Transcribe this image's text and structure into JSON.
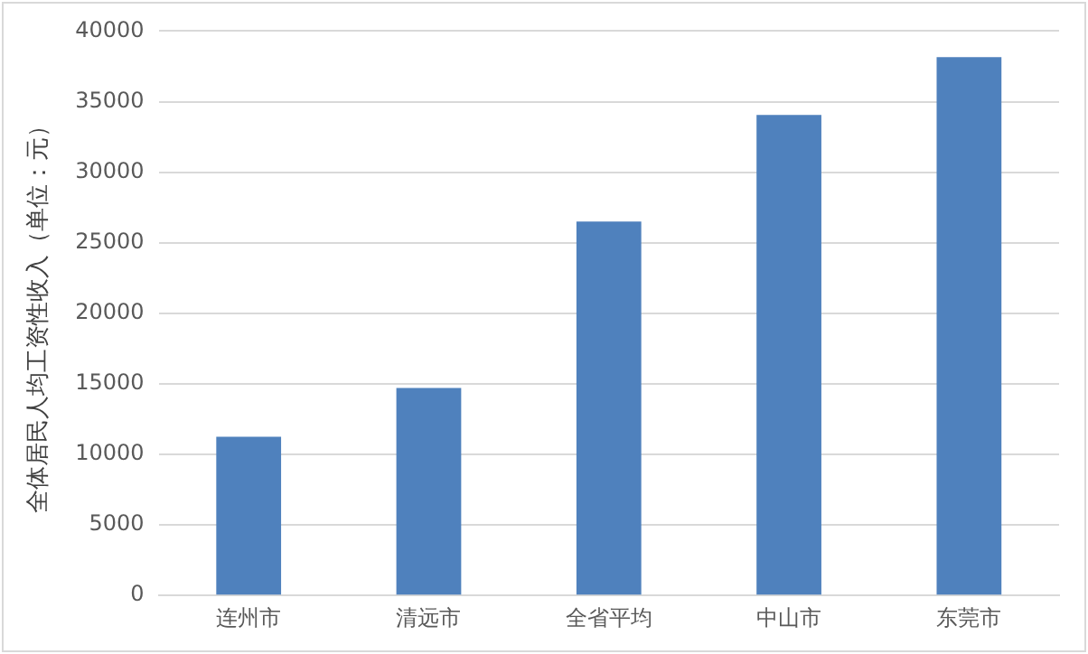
{
  "chart_data": {
    "type": "bar",
    "ylabel": "全体居民人均工资性收入（单位：元）",
    "categories": [
      "连州市",
      "清远市",
      "全省平均",
      "中山市",
      "东莞市"
    ],
    "values": [
      11250,
      14700,
      26500,
      34050,
      38150
    ],
    "color": "#4f81bd",
    "ylim": [
      0,
      40000
    ],
    "yticks": [
      0,
      5000,
      10000,
      15000,
      20000,
      25000,
      30000,
      35000,
      40000
    ],
    "grid": "y"
  }
}
